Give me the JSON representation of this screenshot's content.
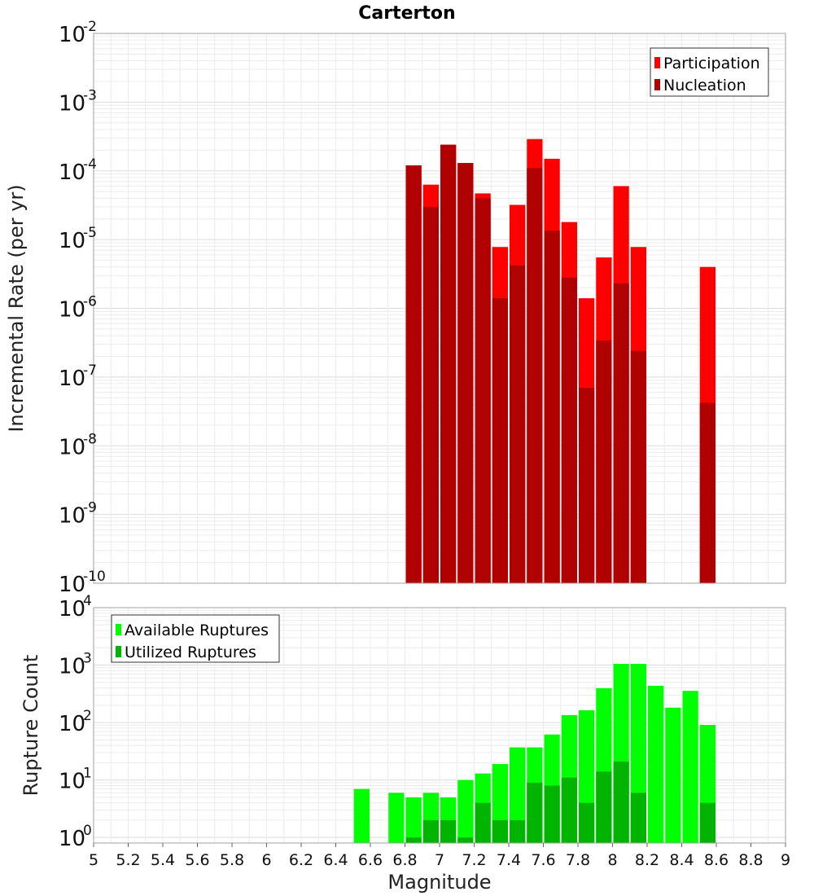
{
  "chart_data": [
    {
      "type": "bar",
      "title": "Carterton",
      "ylabel": "Incremental Rate (per yr)",
      "xlabel": "",
      "yscale": "log",
      "ylim": [
        1e-10,
        0.01
      ],
      "xlim": [
        5,
        9
      ],
      "grid": true,
      "legend": "top-right",
      "x": [
        6.85,
        6.95,
        7.05,
        7.15,
        7.25,
        7.35,
        7.45,
        7.55,
        7.65,
        7.75,
        7.85,
        7.95,
        8.05,
        8.15,
        8.55
      ],
      "series": [
        {
          "name": "Participation",
          "color": "#ff0000",
          "values": [
            0.00012,
            6.3e-05,
            0.00024,
            0.00013,
            4.7e-05,
            7.8e-06,
            3.2e-05,
            0.00029,
            0.00015,
            1.8e-05,
            1.4e-06,
            5.5e-06,
            6e-05,
            7.8e-06,
            4e-06
          ]
        },
        {
          "name": "Nucleation",
          "color": "#b00000",
          "values": [
            0.00012,
            3e-05,
            0.00024,
            0.00013,
            4e-05,
            1.4e-06,
            4.2e-06,
            0.00011,
            1.35e-05,
            2.8e-06,
            7e-08,
            3.4e-07,
            2.3e-06,
            2.4e-07,
            4.2e-08
          ]
        }
      ],
      "yticks": [
        {
          "base": "10",
          "exp": "-10"
        },
        {
          "base": "10",
          "exp": "-9"
        },
        {
          "base": "10",
          "exp": "-8"
        },
        {
          "base": "10",
          "exp": "-7"
        },
        {
          "base": "10",
          "exp": "-6"
        },
        {
          "base": "10",
          "exp": "-5"
        },
        {
          "base": "10",
          "exp": "-4"
        },
        {
          "base": "10",
          "exp": "-3"
        },
        {
          "base": "10",
          "exp": "-2"
        }
      ]
    },
    {
      "type": "bar",
      "title": "",
      "ylabel": "Rupture Count",
      "xlabel": "Magnitude",
      "yscale": "log",
      "ylim": [
        0.8,
        10000
      ],
      "xlim": [
        5,
        9
      ],
      "grid": true,
      "legend": "top-left",
      "x": [
        6.55,
        6.75,
        6.85,
        6.95,
        7.05,
        7.15,
        7.25,
        7.35,
        7.45,
        7.55,
        7.65,
        7.75,
        7.85,
        7.95,
        8.05,
        8.15,
        8.25,
        8.35,
        8.45,
        8.55
      ],
      "series": [
        {
          "name": "Available Ruptures",
          "color": "#00ff00",
          "values": [
            7,
            6,
            5,
            6,
            5,
            10,
            13,
            19,
            37,
            37,
            62,
            135,
            164,
            397,
            1050,
            1050,
            437,
            182,
            357,
            91
          ]
        },
        {
          "name": "Utilized Ruptures",
          "color": "#00b400",
          "values": [
            0,
            0,
            1,
            2,
            2,
            1,
            4,
            2,
            2,
            9,
            8,
            11,
            4,
            14,
            21,
            6,
            0,
            0,
            0,
            4
          ]
        }
      ],
      "xticks": [
        "5",
        "5.2",
        "5.4",
        "5.6",
        "5.8",
        "6",
        "6.2",
        "6.4",
        "6.6",
        "6.8",
        "7",
        "7.2",
        "7.4",
        "7.6",
        "7.8",
        "8",
        "8.2",
        "8.4",
        "8.6",
        "8.8",
        "9"
      ],
      "yticks": [
        {
          "base": "10",
          "exp": "0"
        },
        {
          "base": "10",
          "exp": "1"
        },
        {
          "base": "10",
          "exp": "2"
        },
        {
          "base": "10",
          "exp": "3"
        },
        {
          "base": "10",
          "exp": "4"
        }
      ]
    }
  ]
}
